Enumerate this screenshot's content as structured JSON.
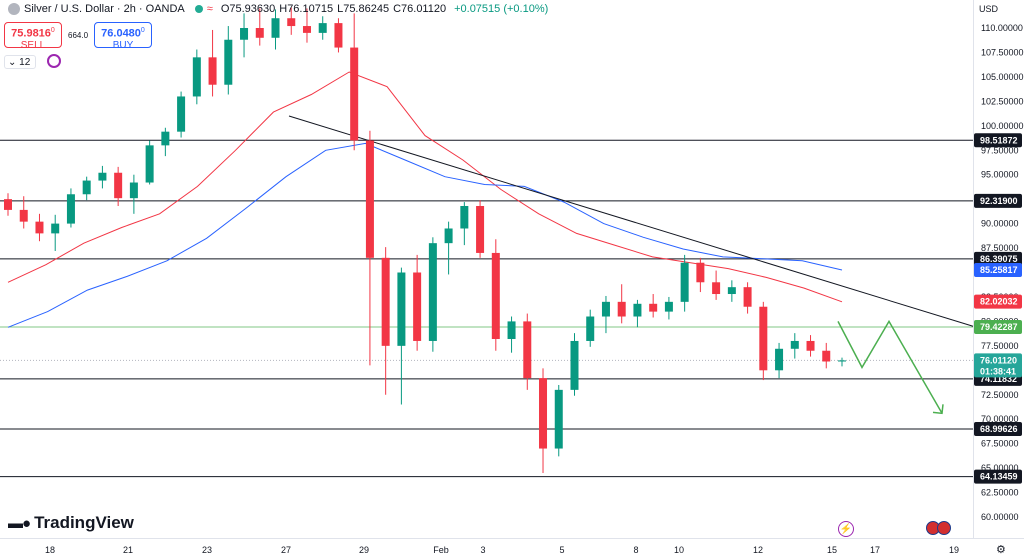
{
  "header": {
    "title": "Silver / U.S. Dollar · 2h · OANDA",
    "open": "O75.93630",
    "high": "H76.10715",
    "low": "L75.86245",
    "close": "C76.01120",
    "change": "+0.07515 (+0.10%)"
  },
  "trade": {
    "sell_price": "75.9816",
    "sell_sup": "0",
    "sell_label": "SELL",
    "spread": "664.0",
    "buy_price": "76.0480",
    "buy_sup": "0",
    "buy_label": "BUY"
  },
  "interval_value": "12",
  "logo_text": "TradingView",
  "currency_label": "USD",
  "chart_data": {
    "type": "candlestick",
    "y_axis_ticks": [
      "110.00000",
      "107.50000",
      "105.00000",
      "102.50000",
      "100.00000",
      "97.50000",
      "95.00000",
      "92.50000",
      "90.00000",
      "87.50000",
      "85.00000",
      "82.50000",
      "80.00000",
      "77.50000",
      "75.00000",
      "72.50000",
      "70.00000",
      "67.50000",
      "65.00000",
      "62.50000",
      "60.00000"
    ],
    "x_axis_ticks": [
      "18",
      "21",
      "23",
      "27",
      "29",
      "Feb",
      "3",
      "5",
      "8",
      "10",
      "12",
      "15",
      "17",
      "19"
    ],
    "horizontal_levels": [
      98.51872,
      92.319,
      86.39075,
      74.11832,
      68.99626,
      64.13459
    ],
    "level_labels": [
      "98.51872",
      "92.31900",
      "86.39075",
      "74.11832",
      "68.99626",
      "64.13459"
    ],
    "green_level": 79.42287,
    "green_level_label": "79.42287",
    "current_price": 76.0112,
    "current_price_label": "76.01120",
    "countdown": "01:38:41",
    "ma_blue_last": 85.25817,
    "ma_blue_label": "85.25817",
    "ma_red_last": 82.02032,
    "ma_red_label": "82.02032",
    "candles": [
      [
        92.5,
        93.1,
        90.8,
        91.4
      ],
      [
        91.4,
        92.8,
        89.5,
        90.2
      ],
      [
        90.2,
        91.0,
        88.2,
        89.0
      ],
      [
        89.0,
        90.9,
        87.2,
        90.0
      ],
      [
        90.0,
        93.6,
        89.6,
        93.0
      ],
      [
        93.0,
        94.8,
        92.4,
        94.4
      ],
      [
        94.4,
        95.9,
        93.6,
        95.2
      ],
      [
        95.2,
        95.8,
        91.8,
        92.6
      ],
      [
        92.6,
        95.0,
        91.0,
        94.2
      ],
      [
        94.2,
        98.5,
        94.0,
        98.0
      ],
      [
        98.0,
        99.8,
        96.9,
        99.4
      ],
      [
        99.4,
        103.5,
        98.8,
        103.0
      ],
      [
        103.0,
        107.8,
        102.2,
        107.0
      ],
      [
        107.0,
        109.8,
        103.0,
        104.2
      ],
      [
        104.2,
        110.2,
        103.2,
        108.8
      ],
      [
        108.8,
        111.5,
        107.0,
        110.0
      ],
      [
        110.0,
        112.0,
        108.2,
        109.0
      ],
      [
        109.0,
        111.9,
        107.8,
        111.0
      ],
      [
        111.0,
        112.1,
        109.3,
        110.2
      ],
      [
        110.2,
        112.0,
        108.5,
        109.5
      ],
      [
        109.5,
        111.2,
        108.8,
        110.5
      ],
      [
        110.5,
        111.0,
        107.5,
        108.0
      ],
      [
        108.0,
        111.5,
        97.5,
        98.5
      ],
      [
        98.5,
        99.5,
        75.5,
        86.5
      ],
      [
        86.5,
        87.6,
        72.5,
        77.5
      ],
      [
        77.5,
        85.5,
        71.5,
        85.0
      ],
      [
        85.0,
        86.8,
        77.0,
        78.0
      ],
      [
        78.0,
        88.6,
        76.9,
        88.0
      ],
      [
        88.0,
        90.2,
        84.8,
        89.5
      ],
      [
        89.5,
        92.2,
        87.8,
        91.8
      ],
      [
        91.8,
        92.4,
        86.5,
        87.0
      ],
      [
        87.0,
        88.4,
        77.0,
        78.2
      ],
      [
        78.2,
        80.5,
        76.8,
        80.0
      ],
      [
        80.0,
        80.8,
        73.0,
        74.2
      ],
      [
        74.2,
        75.2,
        64.5,
        67.0
      ],
      [
        67.0,
        73.5,
        66.2,
        73.0
      ],
      [
        73.0,
        78.8,
        72.4,
        78.0
      ],
      [
        78.0,
        81.2,
        77.4,
        80.5
      ],
      [
        80.5,
        82.6,
        78.8,
        82.0
      ],
      [
        82.0,
        83.8,
        79.8,
        80.5
      ],
      [
        80.5,
        82.2,
        79.4,
        81.8
      ],
      [
        81.8,
        82.8,
        80.4,
        81.0
      ],
      [
        81.0,
        82.5,
        80.2,
        82.0
      ],
      [
        82.0,
        86.8,
        81.0,
        86.0
      ],
      [
        86.0,
        86.5,
        83.0,
        84.0
      ],
      [
        84.0,
        85.2,
        82.2,
        82.8
      ],
      [
        82.8,
        84.2,
        82.0,
        83.5
      ],
      [
        83.5,
        84.0,
        80.8,
        81.5
      ],
      [
        81.5,
        82.0,
        74.0,
        75.0
      ],
      [
        75.0,
        77.8,
        74.2,
        77.2
      ],
      [
        77.2,
        78.8,
        76.2,
        78.0
      ],
      [
        78.0,
        78.6,
        76.4,
        77.0
      ],
      [
        77.0,
        77.8,
        75.2,
        75.9
      ],
      [
        75.9,
        76.3,
        75.4,
        76.0112
      ]
    ],
    "ma_red": [
      84.0,
      85.8,
      88.0,
      89.6,
      91.0,
      93.8,
      97.5,
      101.4,
      103.2,
      105.5,
      104.0,
      99.0,
      96.5,
      93.5,
      91.0,
      89.0,
      87.8,
      86.6,
      86.0,
      85.4,
      84.5,
      83.4,
      82.0
    ],
    "ma_blue": [
      79.4,
      81.0,
      83.2,
      84.6,
      86.2,
      88.5,
      91.6,
      94.8,
      97.5,
      98.2,
      96.5,
      94.8,
      94.0,
      93.8,
      92.2,
      90.0,
      88.6,
      87.4,
      86.6,
      86.4,
      86.2,
      85.25817
    ],
    "trendline": [
      [
        101.0
      ],
      [
        79.5
      ]
    ],
    "projection": [
      80.0,
      75.3,
      80.0,
      70.6
    ]
  }
}
